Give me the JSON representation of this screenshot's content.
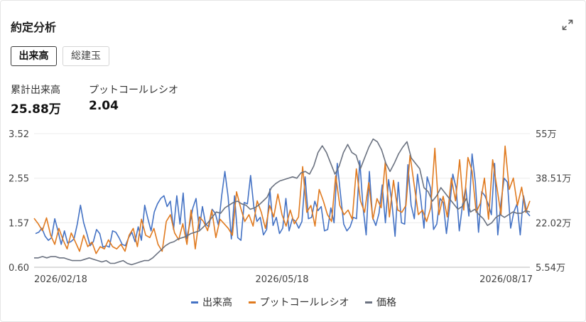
{
  "widget": {
    "title": "約定分析",
    "expand_icon": "expand-icon"
  },
  "tabs": [
    {
      "label": "出来高",
      "active": true
    },
    {
      "label": "総建玉",
      "active": false
    }
  ],
  "stats": {
    "cumulative_volume_label": "累計出来高",
    "cumulative_volume_value": "25.88万",
    "pcr_label": "プットコールレシオ",
    "pcr_value": "2.04"
  },
  "colors": {
    "volume": "#4472c4",
    "pcr": "#e07a1f",
    "price": "#6b7280"
  },
  "chart_data": {
    "type": "line",
    "x_ticks": [
      "2026/02/18",
      "2026/05/18",
      "2026/08/17"
    ],
    "left_axis_ticks": [
      "3.52",
      "2.55",
      "1.57",
      "0.60"
    ],
    "right_axis_ticks": [
      "55万",
      "38.51万",
      "22.02万",
      "5.54万"
    ],
    "left_ylim": [
      0.6,
      3.52
    ],
    "right_ylim": [
      5.54,
      55
    ],
    "grid": true,
    "legend_position": "bottom",
    "series": [
      {
        "name": "出来高",
        "axis": "right",
        "values": [
          18.0,
          18.5,
          20.0,
          17.0,
          15.5,
          16.5,
          23.5,
          19.0,
          14.0,
          19.0,
          14.5,
          15.0,
          16.0,
          21.5,
          28.5,
          22.0,
          18.0,
          13.5,
          15.0,
          19.5,
          18.0,
          13.0,
          13.5,
          13.0,
          19.0,
          18.5,
          16.5,
          14.0,
          13.5,
          16.5,
          18.5,
          15.0,
          20.5,
          15.5,
          28.5,
          23.5,
          19.0,
          26.0,
          29.0,
          31.0,
          32.0,
          28.0,
          30.0,
          19.5,
          32.0,
          21.5,
          33.0,
          16.0,
          21.0,
          27.5,
          31.0,
          19.5,
          28.0,
          21.5,
          20.5,
          27.0,
          25.5,
          21.0,
          32.0,
          41.0,
          31.5,
          16.0,
          32.0,
          16.5,
          15.5,
          29.5,
          29.0,
          39.5,
          28.0,
          22.5,
          24.0,
          17.5,
          19.5,
          34.5,
          21.0,
          24.0,
          18.0,
          20.0,
          31.0,
          19.0,
          23.5,
          22.5,
          20.0,
          22.5,
          39.0,
          23.5,
          24.0,
          30.0,
          26.5,
          28.0,
          19.0,
          19.5,
          27.5,
          22.0,
          44.0,
          32.5,
          21.5,
          19.0,
          20.5,
          24.0,
          23.5,
          45.0,
          28.0,
          17.5,
          41.0,
          24.0,
          21.0,
          25.5,
          36.0,
          22.0,
          38.0,
          29.5,
          17.0,
          37.0,
          22.0,
          21.5,
          43.5,
          28.5,
          23.5,
          40.0,
          31.0,
          20.0,
          39.0,
          35.0,
          19.5,
          21.5,
          31.0,
          29.5,
          18.0,
          28.0,
          40.0,
          35.0,
          19.0,
          28.5,
          35.0,
          24.5,
          47.5,
          37.0,
          18.5,
          33.5,
          32.0,
          29.0,
          25.0,
          44.0,
          17.5,
          29.5,
          38.5,
          37.0,
          20.0,
          26.0,
          29.0,
          17.5,
          32.0,
          26.0,
          24.5
        ]
      },
      {
        "name": "プットコールレシオ",
        "axis": "left",
        "values": [
          1.67,
          1.55,
          1.4,
          1.68,
          1.3,
          1.1,
          1.45,
          1.2,
          1.0,
          1.35,
          1.15,
          0.95,
          1.3,
          1.05,
          1.15,
          0.9,
          1.05,
          1.0,
          1.2,
          1.05,
          1.0,
          1.1,
          0.95,
          1.3,
          1.45,
          1.05,
          1.65,
          1.3,
          1.25,
          1.45,
          1.1,
          0.95,
          1.6,
          1.75,
          1.35,
          1.2,
          1.55,
          1.1,
          1.85,
          1.0,
          1.7,
          1.6,
          1.4,
          1.85,
          1.25,
          1.65,
          1.55,
          1.45,
          1.3,
          2.25,
          1.9,
          1.6,
          1.75,
          1.5,
          2.05,
          1.8,
          1.45,
          1.95,
          1.7,
          2.2,
          1.75,
          1.5,
          1.85,
          1.55,
          1.7,
          2.8,
          1.8,
          1.95,
          1.5,
          2.3,
          2.05,
          1.75,
          1.6,
          2.6,
          1.95,
          1.75,
          1.85,
          1.65,
          2.75,
          2.05,
          1.8,
          2.45,
          1.65,
          2.1,
          1.9,
          2.9,
          1.7,
          2.5,
          1.85,
          1.8,
          1.95,
          3.05,
          2.4,
          1.75,
          1.85,
          1.6,
          1.9,
          3.2,
          1.75,
          2.15,
          1.7,
          2.55,
          2.05,
          2.95,
          1.85,
          3.0,
          2.7,
          1.8,
          2.0,
          2.55,
          1.65,
          2.95,
          2.35,
          1.75,
          3.25,
          2.3,
          2.55,
          1.95,
          2.35,
          1.8,
          2.05
        ]
      },
      {
        "name": "価格",
        "axis": "right",
        "values": [
          9.0,
          9.0,
          9.5,
          9.0,
          9.5,
          9.5,
          9.0,
          9.0,
          8.5,
          8.0,
          8.0,
          8.0,
          8.5,
          9.0,
          8.5,
          8.0,
          7.5,
          8.0,
          7.0,
          7.0,
          7.5,
          8.0,
          7.0,
          6.5,
          7.0,
          7.5,
          8.0,
          8.0,
          9.0,
          10.5,
          12.0,
          13.5,
          14.5,
          15.0,
          16.0,
          16.5,
          17.0,
          18.0,
          18.5,
          19.0,
          20.5,
          22.0,
          24.0,
          26.0,
          25.5,
          27.5,
          28.5,
          29.5,
          30.0,
          29.0,
          28.5,
          27.0,
          27.5,
          28.5,
          30.0,
          31.5,
          35.0,
          36.5,
          37.5,
          38.0,
          38.5,
          39.0,
          38.5,
          40.5,
          41.0,
          40.0,
          43.0,
          48.0,
          50.5,
          48.0,
          44.0,
          40.0,
          43.0,
          48.0,
          51.0,
          48.0,
          47.0,
          42.0,
          46.0,
          50.0,
          53.0,
          52.0,
          49.0,
          44.0,
          41.0,
          44.0,
          47.5,
          50.0,
          52.0,
          46.0,
          44.0,
          42.0,
          35.0,
          33.5,
          30.0,
          32.0,
          35.0,
          33.0,
          31.0,
          29.0,
          27.0,
          28.0,
          31.0,
          26.0,
          27.0,
          25.0,
          23.5,
          21.0,
          22.0,
          24.0,
          25.0,
          24.0,
          25.0,
          26.0,
          25.5,
          25.5,
          26.5,
          26.0
        ]
      }
    ]
  }
}
